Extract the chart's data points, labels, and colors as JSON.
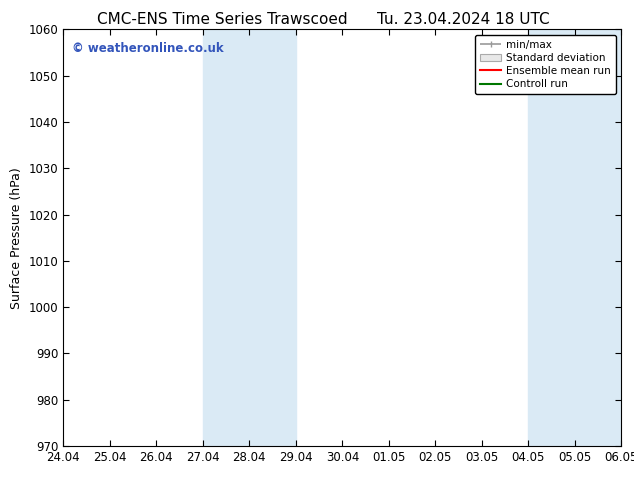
{
  "title_left": "CMC-ENS Time Series Trawscoed",
  "title_right": "Tu. 23.04.2024 18 UTC",
  "ylabel": "Surface Pressure (hPa)",
  "ylim": [
    970,
    1060
  ],
  "yticks": [
    970,
    980,
    990,
    1000,
    1010,
    1020,
    1030,
    1040,
    1050,
    1060
  ],
  "x_tick_labels": [
    "24.04",
    "25.04",
    "26.04",
    "27.04",
    "28.04",
    "29.04",
    "30.04",
    "01.05",
    "02.05",
    "03.05",
    "04.05",
    "05.05",
    "06.05"
  ],
  "x_tick_positions": [
    0,
    1,
    2,
    3,
    4,
    5,
    6,
    7,
    8,
    9,
    10,
    11,
    12
  ],
  "shaded_bands": [
    {
      "x_start": 3,
      "x_end": 5,
      "color": "#daeaf5"
    },
    {
      "x_start": 10,
      "x_end": 12,
      "color": "#daeaf5"
    }
  ],
  "watermark": "© weatheronline.co.uk",
  "watermark_color": "#3355bb",
  "legend_labels": [
    "min/max",
    "Standard deviation",
    "Ensemble mean run",
    "Controll run"
  ],
  "legend_colors": [
    "#999999",
    "#cccccc",
    "#ff0000",
    "#007700"
  ],
  "background_color": "#ffffff",
  "plot_bg_color": "#ffffff",
  "title_fontsize": 11,
  "axis_fontsize": 9,
  "tick_fontsize": 8.5
}
